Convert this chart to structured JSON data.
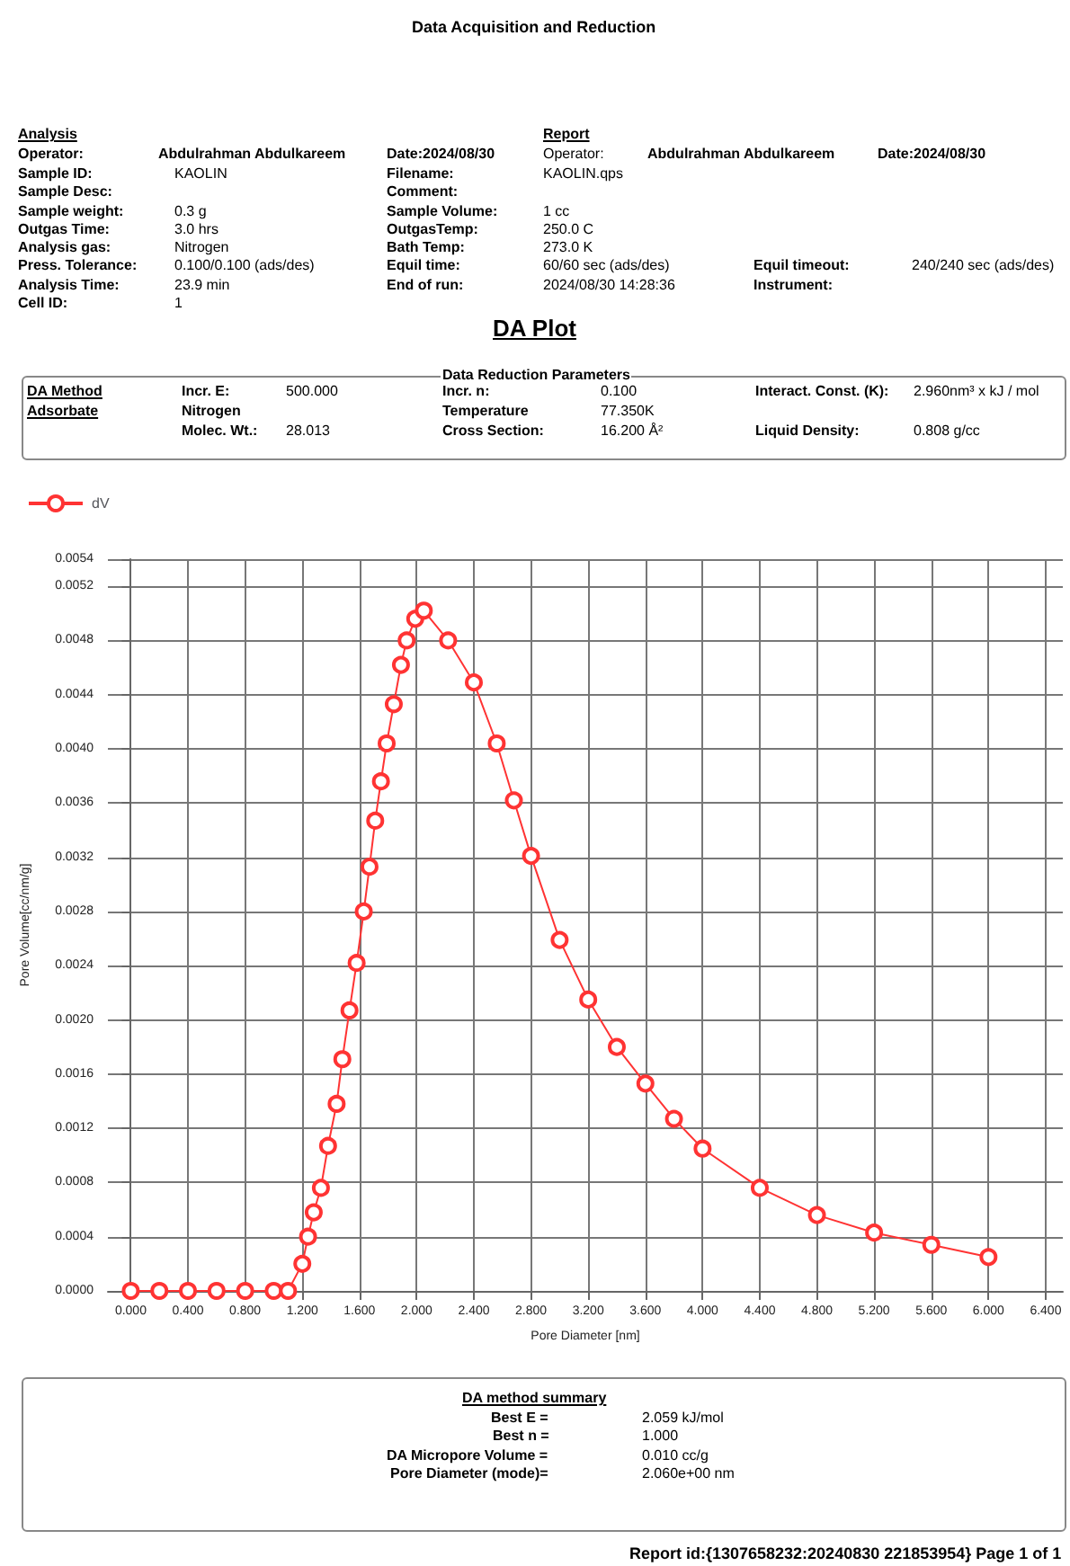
{
  "chart_data": {
    "type": "line",
    "title": "DA Plot",
    "subtitle": "Data Acquisition and Reduction",
    "xlabel": "Pore Diameter [nm]",
    "ylabel": "Pore Volume[cc/nm/g]",
    "x": [
      0,
      0.2,
      0.4,
      0.6,
      0.8,
      1.0,
      1.1,
      1.2,
      1.24,
      1.28,
      1.33,
      1.38,
      1.44,
      1.48,
      1.53,
      1.58,
      1.63,
      1.67,
      1.71,
      1.75,
      1.79,
      1.84,
      1.89,
      1.93,
      1.99,
      2.05,
      2.22,
      2.4,
      2.56,
      2.68,
      2.8,
      3.0,
      3.2,
      3.4,
      3.6,
      3.8,
      4.0,
      4.4,
      4.8,
      5.2,
      5.6,
      6.0
    ],
    "series": [
      {
        "name": "dV",
        "color": "#ff3333",
        "values": [
          0,
          0,
          0,
          0,
          0,
          0,
          0,
          0.0002,
          0.0004,
          0.00058,
          0.00076,
          0.00107,
          0.00138,
          0.00171,
          0.00207,
          0.00242,
          0.0028,
          0.00313,
          0.00347,
          0.00376,
          0.00404,
          0.00433,
          0.00462,
          0.0048,
          0.00496,
          0.00502,
          0.0048,
          0.00449,
          0.00404,
          0.00362,
          0.00321,
          0.00259,
          0.00215,
          0.0018,
          0.00153,
          0.00127,
          0.00105,
          0.00076,
          0.00056,
          0.00043,
          0.00034,
          0.00025
        ]
      }
    ],
    "xlim": [
      -0.16,
      6.52
    ],
    "xticks": [
      {
        "value": 0,
        "label": "0.000"
      },
      {
        "value": 0.4,
        "label": "0.400"
      },
      {
        "value": 0.8,
        "label": "0.800"
      },
      {
        "value": 1.2,
        "label": "1.200"
      },
      {
        "value": 1.6,
        "label": "1.600"
      },
      {
        "value": 2.0,
        "label": "2.000"
      },
      {
        "value": 2.4,
        "label": "2.400"
      },
      {
        "value": 2.8,
        "label": "2.800"
      },
      {
        "value": 3.2,
        "label": "3.200"
      },
      {
        "value": 3.6,
        "label": "3.600"
      },
      {
        "value": 4.0,
        "label": "4.000"
      },
      {
        "value": 4.4,
        "label": "4.400"
      },
      {
        "value": 4.8,
        "label": "4.800"
      },
      {
        "value": 5.2,
        "label": "5.200"
      },
      {
        "value": 5.6,
        "label": "5.600"
      },
      {
        "value": 6.0,
        "label": "6.000"
      },
      {
        "value": 6.4,
        "label": "6.400"
      }
    ],
    "ylim": [
      0,
      0.0054
    ],
    "yticks": [
      {
        "value": 0,
        "label": "0.0000"
      },
      {
        "value": 0.0004,
        "label": "0.0004"
      },
      {
        "value": 0.0008,
        "label": "0.0008"
      },
      {
        "value": 0.0012,
        "label": "0.0012"
      },
      {
        "value": 0.0016,
        "label": "0.0016"
      },
      {
        "value": 0.002,
        "label": "0.0020"
      },
      {
        "value": 0.0024,
        "label": "0.0024"
      },
      {
        "value": 0.0028,
        "label": "0.0028"
      },
      {
        "value": 0.0032,
        "label": "0.0032"
      },
      {
        "value": 0.0036,
        "label": "0.0036"
      },
      {
        "value": 0.004,
        "label": "0.0040"
      },
      {
        "value": 0.0044,
        "label": "0.0044"
      },
      {
        "value": 0.0048,
        "label": "0.0048"
      },
      {
        "value": 0.0052,
        "label": "0.0052"
      },
      {
        "value": 0.0054,
        "label": "0.0054"
      }
    ],
    "grid": true,
    "legend": "top left",
    "marker": "circle",
    "line_style": "solid",
    "annotations": [
      "Analysis",
      "Operator:",
      "Abdulrahman Abdulkareem",
      "Date:2024/08/30",
      "Report",
      "Operator:",
      "Abdulrahman Abdulkareem",
      "Date:2024/08/30",
      "Sample ID:",
      "KAOLIN",
      "Filename:",
      "KAOLIN.qps",
      "Sample Desc:",
      "Comment:",
      "Sample weight:",
      "0.3 g",
      "Sample Volume:",
      "1 cc",
      "Outgas Time:",
      "3.0 hrs",
      "OutgasTemp:",
      "250.0 C",
      "Analysis gas:",
      "Nitrogen",
      "Bath Temp:",
      "273.0 K",
      "Press. Tolerance:",
      "0.100/0.100 (ads/des)",
      "Equil time:",
      "60/60 sec (ads/des)",
      "Equil timeout:",
      "240/240 sec (ads/des)",
      "Analysis Time:",
      "23.9 min",
      "End of run:",
      "2024/08/30 14:28:36",
      "Instrument:",
      "Cell ID:",
      "1",
      "Data Reduction Parameters",
      "DA Method",
      "Incr. E:",
      "500.000",
      "Incr. n:",
      "0.100",
      "Interact. Const. (K):",
      "2.960nm³ x kJ / mol",
      "Adsorbate",
      "Nitrogen",
      "Temperature",
      "77.350K",
      "Molec. Wt.:",
      "28.013",
      "Cross Section:",
      "16.200 Å²",
      "Liquid Density:",
      "0.808  g/cc",
      "DA method summary",
      "Best E =",
      "2.059 kJ/mol",
      "Best n =",
      "1.000",
      "DA Micropore Volume =",
      "0.010 cc/g",
      "Pore Diameter (mode)=",
      "2.060e+00 nm",
      "Report id:{1307658232:20240830 221853954} Page 1 of 1"
    ]
  }
}
